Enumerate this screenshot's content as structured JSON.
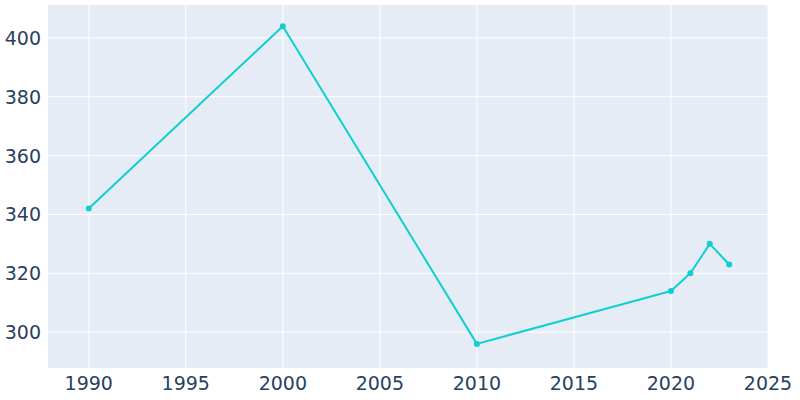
{
  "chart_data": {
    "type": "line",
    "x": [
      1990,
      2000,
      2010,
      2020,
      2021,
      2022,
      2023
    ],
    "values": [
      342,
      404,
      296,
      314,
      320,
      330,
      323
    ],
    "color": "#0fcfd0",
    "marker": "circle",
    "xlim": [
      1987.9,
      2025
    ],
    "ylim": [
      287.8,
      411.2
    ],
    "xticks": [
      1990,
      1995,
      2000,
      2005,
      2010,
      2015,
      2020,
      2025
    ],
    "yticks": [
      300,
      320,
      340,
      360,
      380,
      400
    ],
    "grid": true
  }
}
